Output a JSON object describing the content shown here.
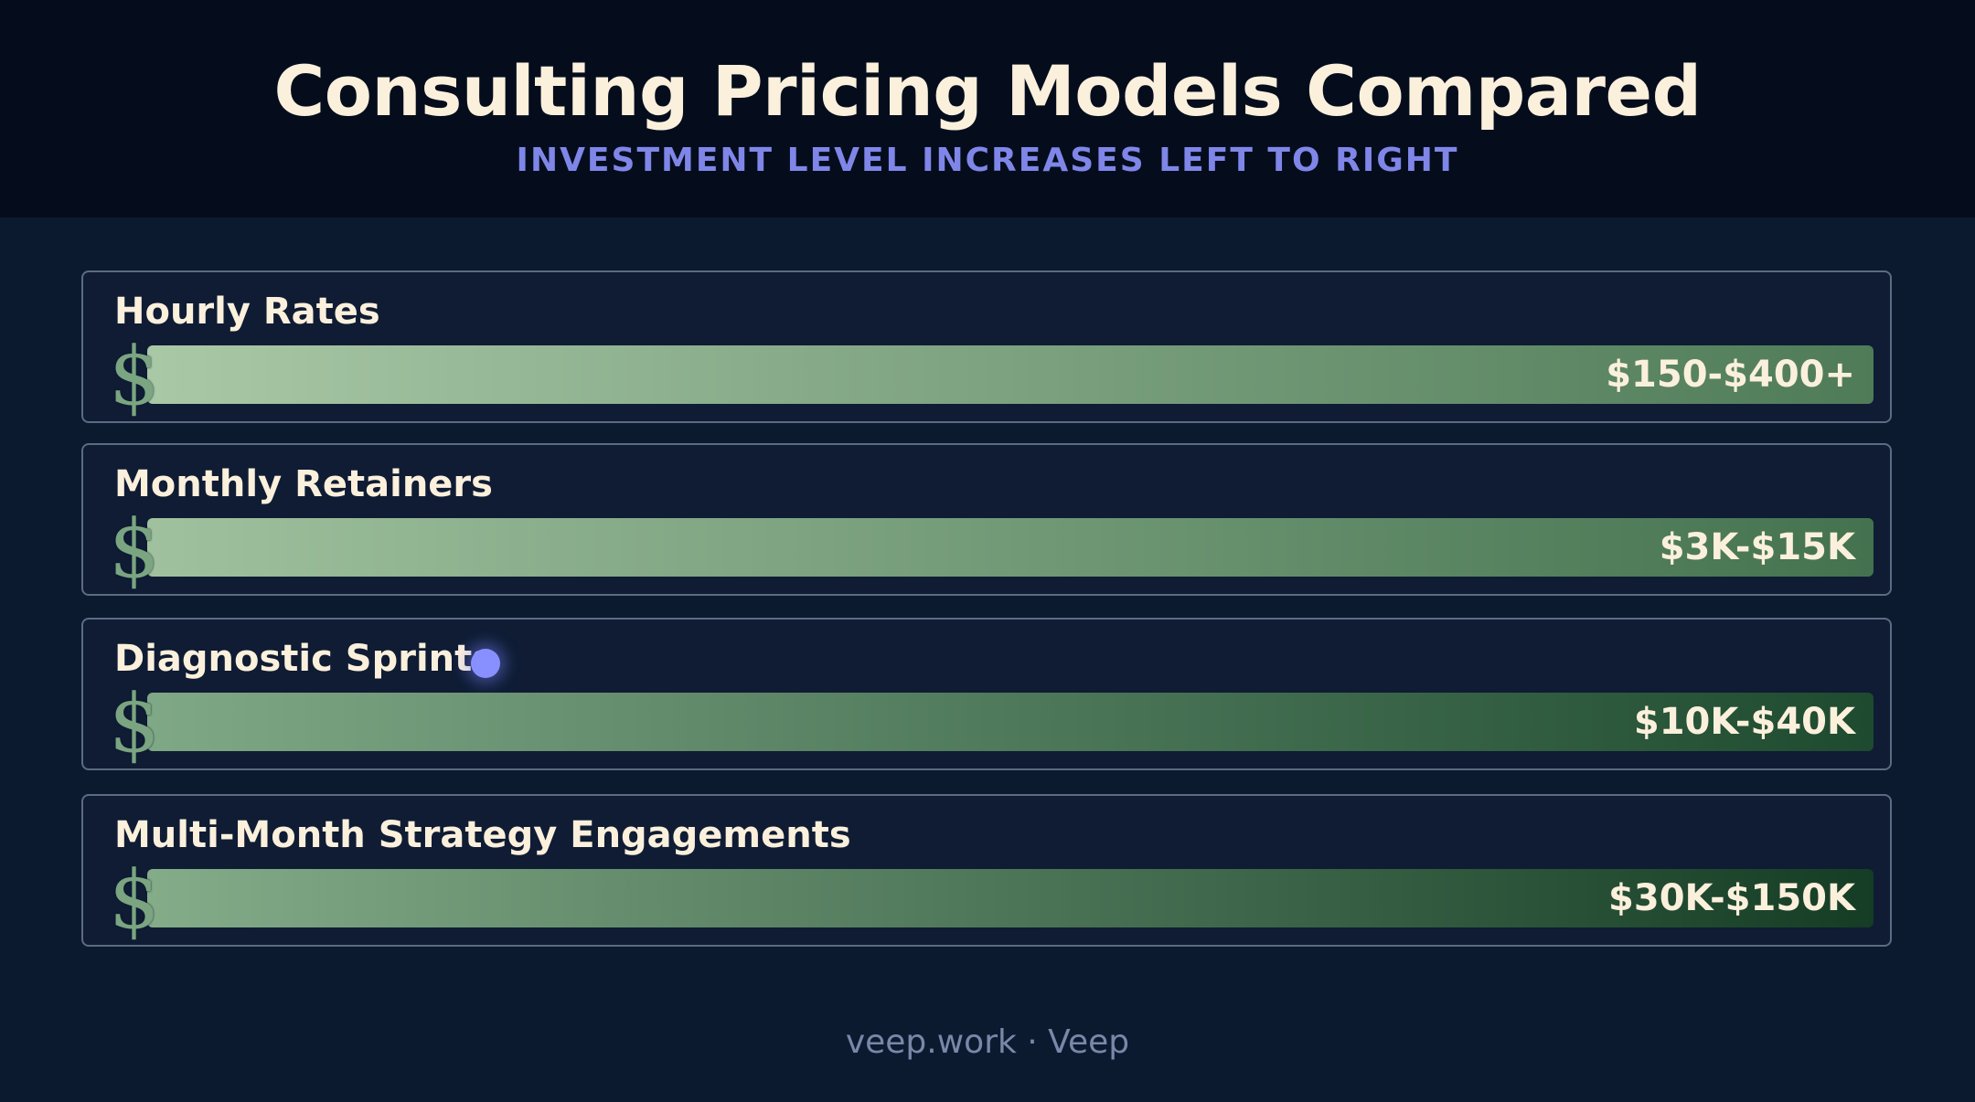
{
  "header": {
    "title": "Consulting Pricing Models Compared",
    "subtitle": "INVESTMENT LEVEL INCREASES LEFT TO RIGHT"
  },
  "models": [
    {
      "label": "Hourly Rates",
      "value": "$150-$400+",
      "gradient_start": "#a9c8a6",
      "gradient_end": "#4f7b58"
    },
    {
      "label": "Monthly Retainers",
      "value": "$3K-$15K",
      "gradient_start": "#a0c19e",
      "gradient_end": "#44724f"
    },
    {
      "label": "Diagnostic Sprints",
      "value": "$10K-$40K",
      "gradient_start": "#7fa886",
      "gradient_end": "#1e4a2f"
    },
    {
      "label": "Multi-Month Strategy Engagements",
      "value": "$30K-$150K",
      "gradient_start": "#84ac89",
      "gradient_end": "#153d25"
    }
  ],
  "icons": {
    "bar_icon": "dollar-sign-icon",
    "dollar_glyph": "$"
  },
  "colors": {
    "accent": "#8890ff",
    "title": "#fbf0dc",
    "subtitle": "#7f86e8"
  },
  "footer": {
    "text": "veep.work · Veep"
  }
}
